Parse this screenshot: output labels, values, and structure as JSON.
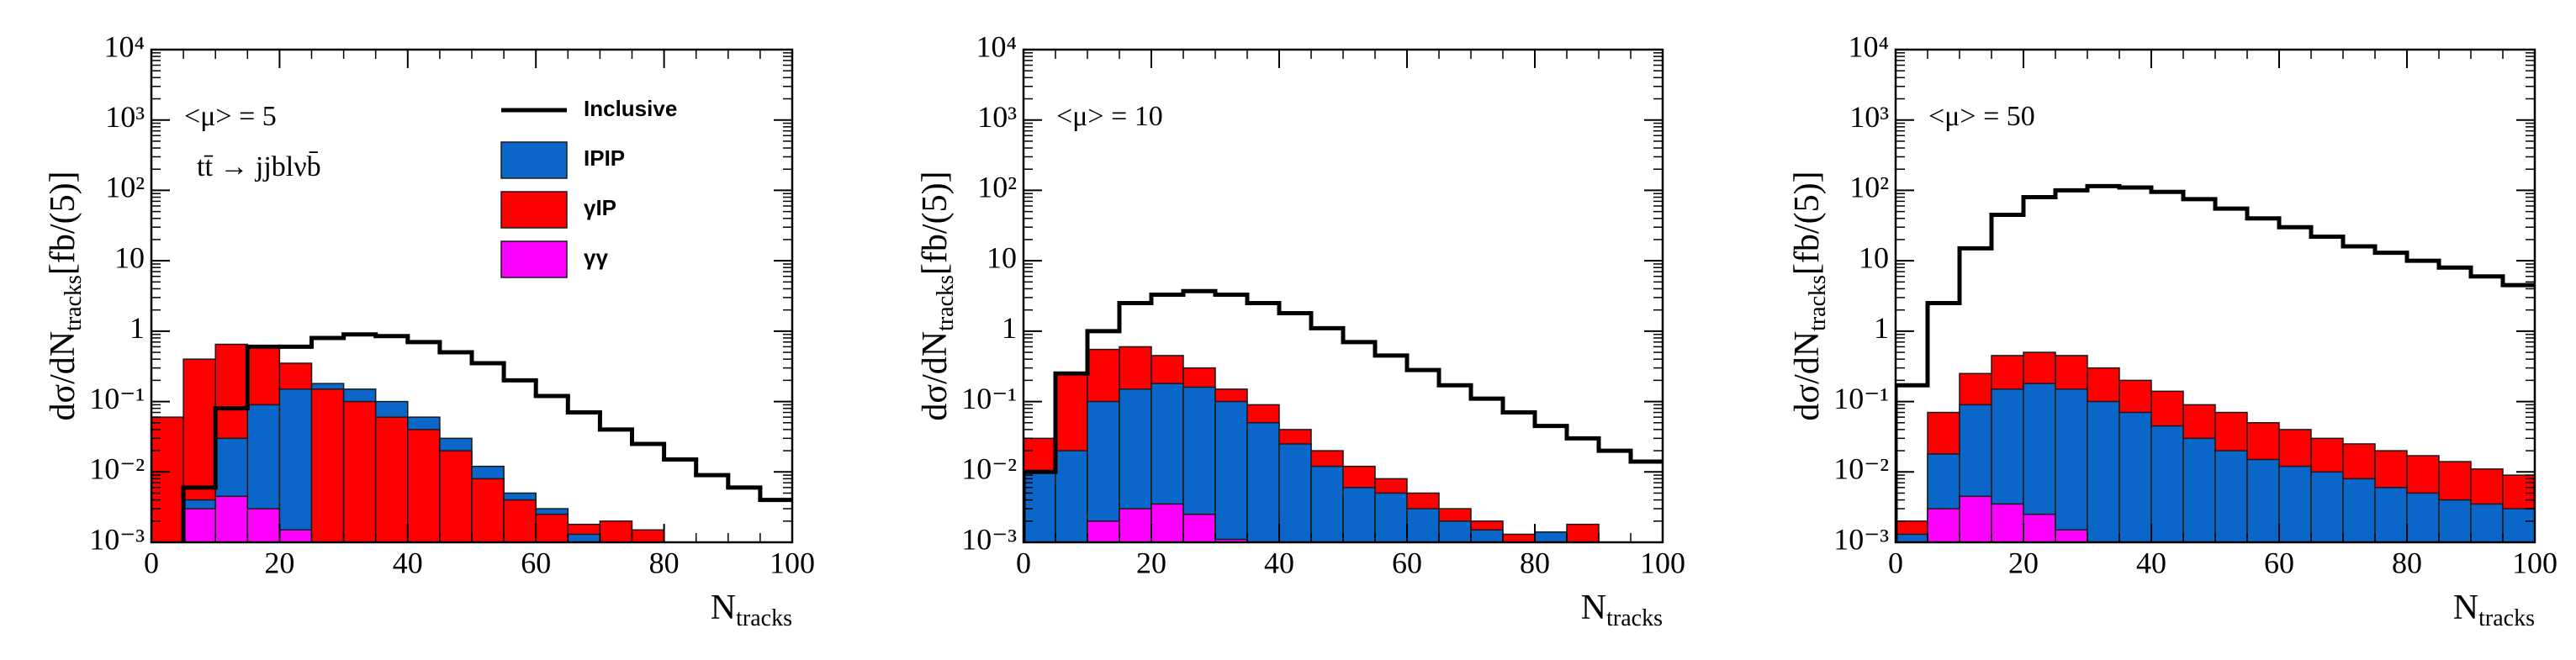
{
  "chart_data": [
    {
      "type": "histogram",
      "log_y": true,
      "bins": [
        0,
        5,
        10,
        15,
        20,
        25,
        30,
        35,
        40,
        45,
        50,
        55,
        60,
        65,
        70,
        75,
        80,
        85,
        90,
        95,
        100
      ],
      "xlim": [
        0,
        100
      ],
      "xticks": [
        0,
        20,
        40,
        60,
        80,
        100
      ],
      "ylim": [
        0.001,
        10000
      ],
      "yticks": [
        {
          "value": 0.001,
          "label": "10⁻³"
        },
        {
          "value": 0.01,
          "label": "10⁻²"
        },
        {
          "value": 0.1,
          "label": "10⁻¹"
        },
        1,
        10,
        {
          "value": 100,
          "label": "10²"
        },
        {
          "value": 1000,
          "label": "10³"
        },
        {
          "value": 10000,
          "label": "10⁴"
        }
      ],
      "xlabel": {
        "main": "N",
        "sub": "tracks"
      },
      "ylabel": {
        "main": "dσ/dN",
        "sub": "tracks",
        "tail": "[fb/(5)]"
      },
      "annotations": [
        "<μ> = 5",
        "tt̄ → jjblνb̄"
      ],
      "legend": true,
      "series": [
        {
          "name": "Inclusive",
          "color": "#000000",
          "style": "step",
          "values": [
            null,
            0.006,
            0.08,
            0.6,
            0.6,
            0.8,
            0.9,
            0.85,
            0.7,
            0.5,
            0.35,
            0.2,
            0.12,
            0.07,
            0.04,
            0.025,
            0.015,
            0.009,
            0.006,
            0.004
          ]
        },
        {
          "name": "IPIP",
          "color": "#0a66c8",
          "style": "fill",
          "values": [
            null,
            0.004,
            0.03,
            0.09,
            0.15,
            0.18,
            0.15,
            0.1,
            0.06,
            0.03,
            0.012,
            0.005,
            0.003,
            0.0013,
            null,
            null,
            null,
            null,
            null,
            null
          ]
        },
        {
          "name": "γIP",
          "color": "#ff0000",
          "style": "fill",
          "values": [
            0.06,
            0.4,
            0.65,
            0.6,
            0.35,
            0.15,
            0.1,
            0.06,
            0.04,
            0.02,
            0.008,
            0.004,
            0.0025,
            0.0018,
            0.002,
            0.0015,
            null,
            null,
            null,
            null
          ]
        },
        {
          "name": "γγ",
          "color": "#ff00ff",
          "style": "fill",
          "values": [
            null,
            0.003,
            0.0045,
            0.003,
            0.0015,
            null,
            null,
            null,
            null,
            null,
            null,
            null,
            null,
            null,
            null,
            null,
            null,
            null,
            null,
            null
          ]
        }
      ]
    },
    {
      "type": "histogram",
      "log_y": true,
      "bins": [
        0,
        5,
        10,
        15,
        20,
        25,
        30,
        35,
        40,
        45,
        50,
        55,
        60,
        65,
        70,
        75,
        80,
        85,
        90,
        95,
        100
      ],
      "xlim": [
        0,
        100
      ],
      "xticks": [
        0,
        20,
        40,
        60,
        80,
        100
      ],
      "ylim": [
        0.001,
        10000
      ],
      "yticks": [
        {
          "value": 0.001,
          "label": "10⁻³"
        },
        {
          "value": 0.01,
          "label": "10⁻²"
        },
        {
          "value": 0.1,
          "label": "10⁻¹"
        },
        1,
        10,
        {
          "value": 100,
          "label": "10²"
        },
        {
          "value": 1000,
          "label": "10³"
        },
        {
          "value": 10000,
          "label": "10⁴"
        }
      ],
      "xlabel": {
        "main": "N",
        "sub": "tracks"
      },
      "ylabel": {
        "main": "dσ/dN",
        "sub": "tracks",
        "tail": "[fb/(5)]"
      },
      "annotations": [
        "<μ> = 10"
      ],
      "legend": false,
      "series": [
        {
          "color": "#000000",
          "style": "step",
          "values": [
            0.01,
            0.25,
            1,
            2.5,
            3.3,
            3.7,
            3.3,
            2.5,
            1.8,
            1.1,
            0.7,
            0.45,
            0.28,
            0.17,
            0.11,
            0.07,
            0.045,
            0.03,
            0.02,
            0.014
          ]
        },
        {
          "color": "#0a66c8",
          "style": "fill",
          "values": [
            0.01,
            0.02,
            0.1,
            0.15,
            0.18,
            0.16,
            0.1,
            0.05,
            0.025,
            0.012,
            0.006,
            0.005,
            0.003,
            0.002,
            0.0015,
            0.001,
            0.0014,
            null,
            null,
            null
          ]
        },
        {
          "color": "#ff0000",
          "style": "fill",
          "values": [
            0.03,
            0.25,
            0.55,
            0.6,
            0.45,
            0.3,
            0.15,
            0.09,
            0.04,
            0.02,
            0.012,
            0.008,
            0.005,
            0.003,
            0.002,
            0.0013,
            0.001,
            0.0018,
            null,
            null
          ]
        },
        {
          "color": "#ff00ff",
          "style": "fill",
          "values": [
            null,
            null,
            0.002,
            0.003,
            0.0035,
            0.0025,
            0.0011,
            null,
            null,
            null,
            null,
            null,
            null,
            null,
            null,
            null,
            null,
            null,
            null,
            null
          ]
        }
      ]
    },
    {
      "type": "histogram",
      "log_y": true,
      "bins": [
        0,
        5,
        10,
        15,
        20,
        25,
        30,
        35,
        40,
        45,
        50,
        55,
        60,
        65,
        70,
        75,
        80,
        85,
        90,
        95,
        100
      ],
      "xlim": [
        0,
        100
      ],
      "xticks": [
        0,
        20,
        40,
        60,
        80,
        100
      ],
      "ylim": [
        0.001,
        10000
      ],
      "yticks": [
        {
          "value": 0.001,
          "label": "10⁻³"
        },
        {
          "value": 0.01,
          "label": "10⁻²"
        },
        {
          "value": 0.1,
          "label": "10⁻¹"
        },
        1,
        10,
        {
          "value": 100,
          "label": "10²"
        },
        {
          "value": 1000,
          "label": "10³"
        },
        {
          "value": 10000,
          "label": "10⁴"
        }
      ],
      "xlabel": {
        "main": "N",
        "sub": "tracks"
      },
      "ylabel": {
        "main": "dσ/dN",
        "sub": "tracks",
        "tail": "[fb/(5)]"
      },
      "annotations": [
        "<μ> = 50"
      ],
      "legend": false,
      "series": [
        {
          "color": "#000000",
          "style": "step",
          "values": [
            0.17,
            2.5,
            15,
            45,
            80,
            100,
            115,
            110,
            95,
            75,
            55,
            40,
            30,
            22,
            16,
            13,
            10,
            8,
            6,
            4.5
          ]
        },
        {
          "color": "#0a66c8",
          "style": "fill",
          "values": [
            0.0013,
            0.018,
            0.09,
            0.15,
            0.18,
            0.15,
            0.1,
            0.07,
            0.045,
            0.03,
            0.02,
            0.015,
            0.012,
            0.01,
            0.008,
            0.006,
            0.005,
            0.004,
            0.0035,
            0.003
          ]
        },
        {
          "color": "#ff0000",
          "style": "fill",
          "values": [
            0.002,
            0.07,
            0.25,
            0.45,
            0.5,
            0.45,
            0.3,
            0.2,
            0.14,
            0.09,
            0.07,
            0.05,
            0.04,
            0.03,
            0.025,
            0.02,
            0.017,
            0.014,
            0.011,
            0.009
          ]
        },
        {
          "color": "#ff00ff",
          "style": "fill",
          "values": [
            null,
            0.003,
            0.0045,
            0.0035,
            0.0025,
            0.0015,
            null,
            null,
            null,
            null,
            null,
            null,
            null,
            null,
            null,
            null,
            null,
            null,
            null,
            null
          ]
        }
      ]
    }
  ]
}
